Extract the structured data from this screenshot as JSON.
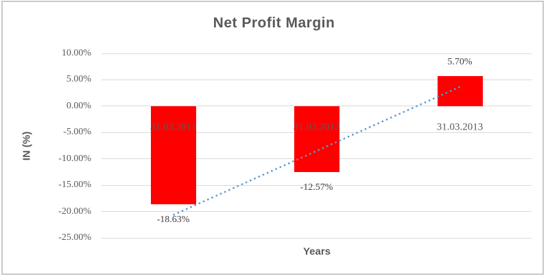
{
  "chart_data": {
    "type": "bar",
    "title": "Net Profit Margin",
    "ylabel": "IN (%)",
    "xlabel": "Years",
    "categories": [
      "31.03.2011",
      "31.03.2012",
      "31.03.2013"
    ],
    "values": [
      -18.63,
      -12.57,
      5.7
    ],
    "data_labels": [
      "-18.63%",
      "-12.57%",
      "5.70%"
    ],
    "y_ticks": [
      "10.00%",
      "5.00%",
      "0.00%",
      "-5.00%",
      "-10.00%",
      "-15.00%",
      "-20.00%",
      "-25.00%"
    ],
    "y_tick_step": 5,
    "ylim": [
      -25,
      10
    ],
    "grid": true,
    "legend": "none",
    "bar_color": "#FF0000",
    "trendline": {
      "type": "linear",
      "style": "dotted",
      "color": "#5B9BD5"
    }
  },
  "colors": {
    "title_text": "#595959",
    "axis_text": "#595959",
    "data_label_text": "#404040",
    "gridline": "#D9D9D9",
    "frame_border": "#C9C9C9",
    "background": "#FFFFFF"
  }
}
